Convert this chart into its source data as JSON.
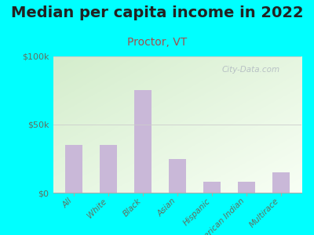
{
  "title": "Median per capita income in 2022",
  "subtitle": "Proctor, VT",
  "categories": [
    "All",
    "White",
    "Black",
    "Asian",
    "Hispanic",
    "American Indian",
    "Multirace"
  ],
  "values": [
    35000,
    35000,
    75000,
    25000,
    8000,
    8000,
    15000
  ],
  "bar_color": "#c9b8d8",
  "title_fontsize": 14,
  "title_color": "#222222",
  "subtitle_fontsize": 10,
  "subtitle_color": "#a05050",
  "tick_label_color": "#607060",
  "background_outer": "#00ffff",
  "grad_top_left": "#d4edcc",
  "grad_bottom_right": "#f0faf0",
  "ylim": [
    0,
    100000
  ],
  "yticks": [
    0,
    50000,
    100000
  ],
  "ytick_labels": [
    "$0",
    "$50k",
    "$100k"
  ],
  "watermark": "City-Data.com",
  "watermark_color": "#b0b8c0"
}
